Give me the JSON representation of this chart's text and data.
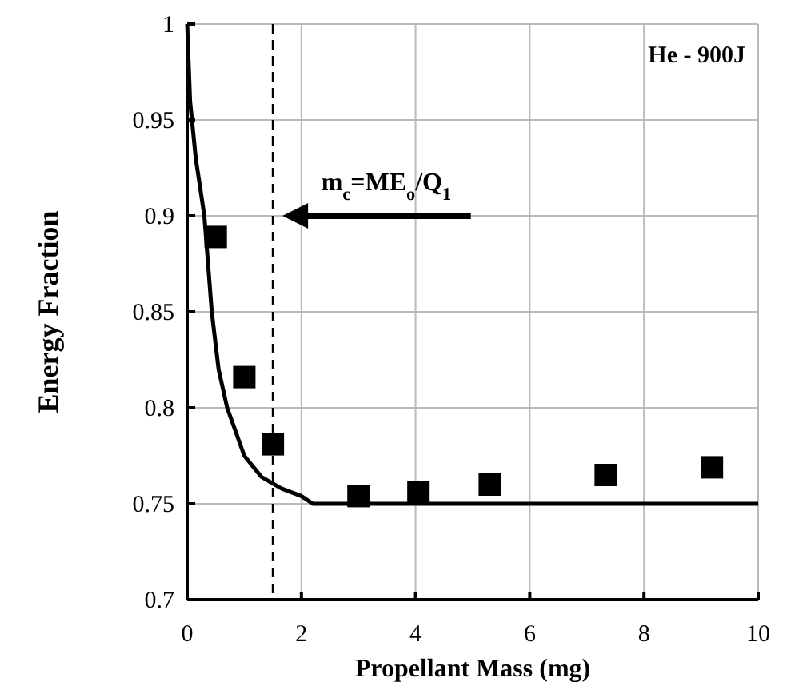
{
  "chart_data": {
    "type": "scatter",
    "xlabel": "Propellant Mass (mg)",
    "ylabel": "Energy Fraction",
    "xlim": [
      0,
      10
    ],
    "xticks": [
      0,
      2,
      4,
      6,
      8,
      10
    ],
    "ylim": [
      0.7,
      1
    ],
    "yticks": [
      0.7,
      0.75,
      0.8,
      0.85,
      0.9,
      0.95,
      1
    ],
    "grid": true,
    "marker": "square",
    "series": [
      {
        "color": "#000000",
        "x": [
          0.5,
          1.0,
          1.5,
          3.0,
          4.05,
          5.3,
          7.33,
          9.19
        ],
        "values": [
          0.889,
          0.816,
          0.781,
          0.754,
          0.756,
          0.76,
          0.765,
          0.769
        ]
      },
      {
        "type": "line",
        "color": "#000000",
        "marker": "none",
        "line_style": "solid",
        "x": [
          0,
          0.05,
          0.15,
          0.3,
          0.43,
          0.55,
          0.7,
          1.0,
          1.3,
          1.65,
          2.0,
          2.2,
          10
        ],
        "values": [
          1,
          0.96,
          0.93,
          0.9,
          0.85,
          0.82,
          0.8,
          0.775,
          0.764,
          0.758,
          0.754,
          0.75,
          0.75
        ]
      }
    ],
    "ref_lines": [
      {
        "axis": "x",
        "value": 1.5,
        "line_style": "dashed",
        "color": "#000000"
      }
    ],
    "annotations": [
      "m$_{c}$=ME$_{o}$/Q$_{1}$",
      "He - 900J"
    ]
  }
}
